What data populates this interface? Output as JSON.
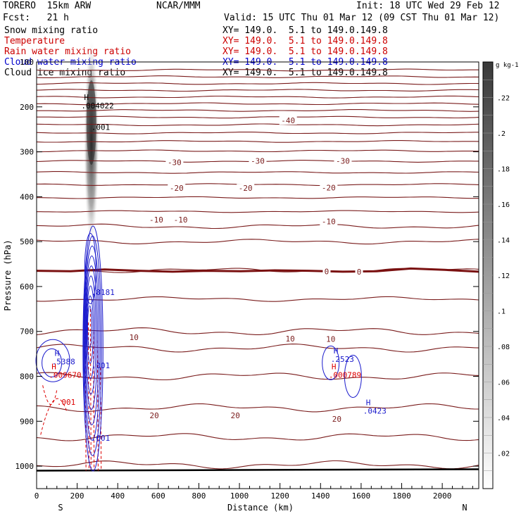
{
  "header": {
    "model": "TORERO  15km ARW",
    "center": "NCAR/MMM",
    "init": "Init: 18 UTC Wed 29 Feb 12",
    "fcst": "Fcst:   21 h",
    "valid": "Valid: 15 UTC Thu 01 Mar 12 (09 CST Thu 01 Mar 12)"
  },
  "fields": [
    {
      "name": "Snow mixing ratio",
      "xy": "XY= 149.0.  5.1 to 149.0.149.8",
      "color": "#000000"
    },
    {
      "name": "Temperature",
      "xy": "XY= 149.0.  5.1 to 149.0.149.8",
      "color": "#cc0000"
    },
    {
      "name": "Rain water mixing ratio",
      "xy": "XY= 149.0.  5.1 to 149.0.149.8",
      "color": "#cc0000"
    },
    {
      "name": "Cloud water mixing ratio",
      "xy": "XY= 149.0.  5.1 to 149.0.149.8",
      "color": "#0000cc"
    },
    {
      "name": "Cloud ice mixing ratio",
      "xy": "XY= 149.0.  5.1 to 149.0.149.8",
      "color": "#000000"
    }
  ],
  "chart_data": {
    "type": "cross-section contour",
    "xlabel": "Distance (km)",
    "ylabel": "Pressure (hPa)",
    "xlim": [
      0,
      2180
    ],
    "ylim": [
      1050,
      100
    ],
    "x_ticks": [
      0,
      200,
      400,
      600,
      800,
      1000,
      1200,
      1400,
      1600,
      1800,
      2000
    ],
    "y_ticks": [
      100,
      200,
      300,
      400,
      500,
      600,
      700,
      800,
      900,
      1000
    ],
    "x_endpoints": {
      "left": "S",
      "right": "N"
    },
    "colorbar": {
      "units": "g kg-1",
      "ticks": [
        ".02",
        ".04",
        ".06",
        ".08",
        ".1",
        ".12",
        ".14",
        ".16",
        ".18",
        ".2",
        ".22"
      ],
      "tick_values": [
        0.02,
        0.04,
        0.06,
        0.08,
        0.1,
        0.12,
        0.14,
        0.16,
        0.18,
        0.2,
        0.22
      ],
      "range": [
        0,
        0.24
      ]
    },
    "temperature_labels": [
      {
        "text": "-40",
        "x": 1240,
        "p": 230
      },
      {
        "text": "-30",
        "x": 680,
        "p": 323
      },
      {
        "text": "-30",
        "x": 1090,
        "p": 320
      },
      {
        "text": "-30",
        "x": 1510,
        "p": 320
      },
      {
        "text": "-20",
        "x": 690,
        "p": 381
      },
      {
        "text": "-20",
        "x": 1030,
        "p": 381
      },
      {
        "text": "-20",
        "x": 1440,
        "p": 380
      },
      {
        "text": "-10",
        "x": 590,
        "p": 451
      },
      {
        "text": "-10",
        "x": 710,
        "p": 451
      },
      {
        "text": "-10",
        "x": 1440,
        "p": 455
      },
      {
        "text": "0",
        "x": 1430,
        "p": 566
      },
      {
        "text": "0",
        "x": 1590,
        "p": 567
      },
      {
        "text": "10",
        "x": 480,
        "p": 713
      },
      {
        "text": "10",
        "x": 1250,
        "p": 716
      },
      {
        "text": "10",
        "x": 1450,
        "p": 717
      },
      {
        "text": "20",
        "x": 580,
        "p": 887
      },
      {
        "text": "20",
        "x": 980,
        "p": 887
      },
      {
        "text": "20",
        "x": 1480,
        "p": 895
      }
    ],
    "temperature_isotherms_p_at_x0": [
      118,
      133,
      148,
      163,
      178,
      193,
      208,
      223,
      240,
      258,
      277,
      298,
      321,
      346,
      373,
      402,
      433,
      466,
      500,
      564,
      628,
      700,
      737,
      800,
      870,
      935,
      997
    ],
    "zero_isotherm_p": [
      565,
      566,
      562,
      565,
      567,
      565,
      566,
      564,
      565,
      567,
      566,
      560,
      563,
      567
    ],
    "ground_p": 1010,
    "maxima": [
      {
        "field": "snow",
        "marker": "H",
        "value": ".004022",
        "x": 220,
        "p": 200
      },
      {
        "field": "snow",
        "contour": ".001",
        "x": 270,
        "p": 248
      },
      {
        "field": "cloud water",
        "value": ".8181",
        "x": 270,
        "p": 616
      },
      {
        "field": "cloud water",
        "contour": ".001",
        "x": 270,
        "p": 779
      },
      {
        "field": "cloud water",
        "marker": "H",
        "value": ".5388",
        "x": 75,
        "p": 770
      },
      {
        "field": "rain",
        "marker": "H",
        "value": ".009670",
        "x": 60,
        "p": 800
      },
      {
        "field": "rain",
        "contour": ".001",
        "x": 100,
        "p": 860
      },
      {
        "field": "cloud water",
        "contour": ".001",
        "x": 270,
        "p": 940
      },
      {
        "field": "cloud water",
        "marker": "H",
        "value": ".2523",
        "x": 1450,
        "p": 765
      },
      {
        "field": "rain",
        "marker": "H",
        "value": ".000789",
        "x": 1440,
        "p": 800
      },
      {
        "field": "cloud water",
        "marker": "H",
        "value": ".0423",
        "x": 1610,
        "p": 880
      }
    ]
  }
}
